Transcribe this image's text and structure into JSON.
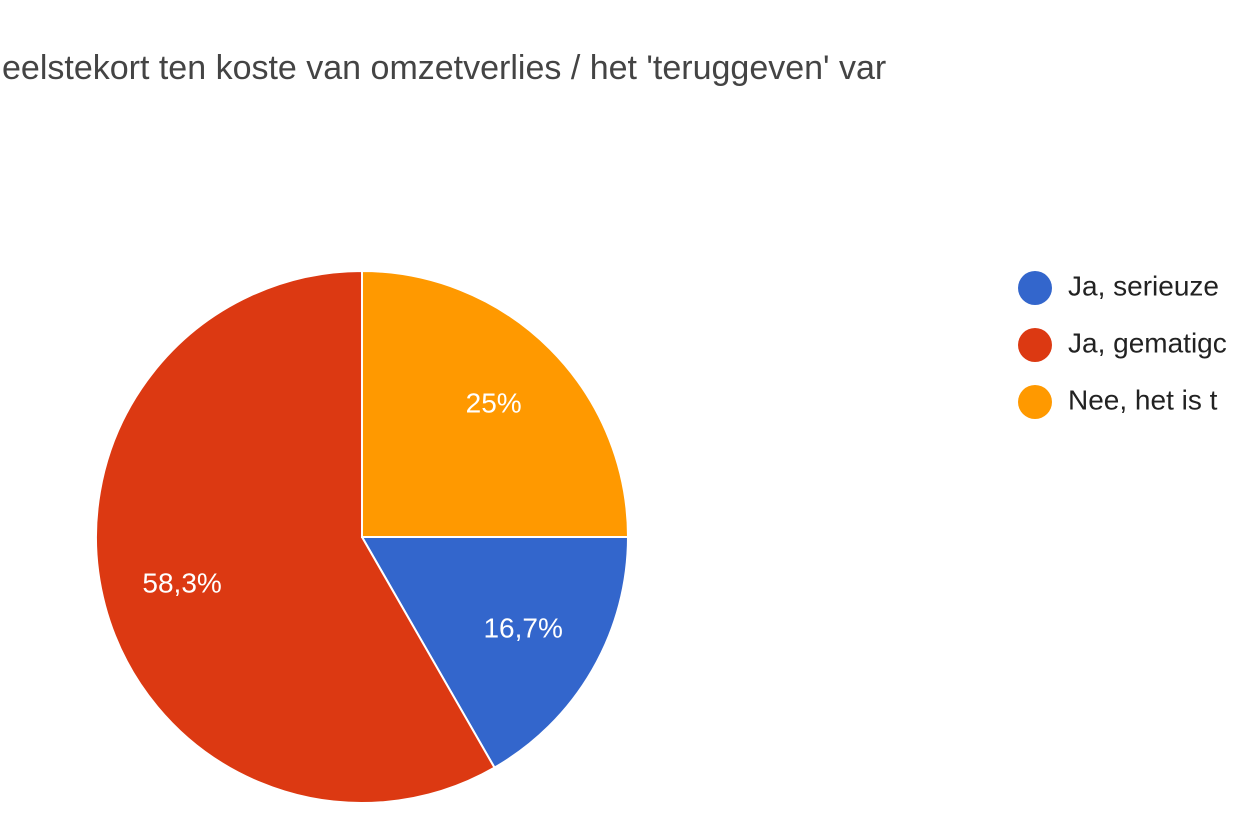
{
  "chart_data": {
    "type": "pie",
    "title": "eelstekort ten koste van omzetverlies / het 'teruggeven' var",
    "categories": [
      "Ja, serieuze",
      "Ja, gematigc",
      "Nee, het is t"
    ],
    "values": [
      16.7,
      58.3,
      25
    ],
    "value_labels": [
      "16,7%",
      "58,3%",
      "25%"
    ],
    "colors": [
      "#3366cc",
      "#dc3912",
      "#ff9900"
    ]
  }
}
